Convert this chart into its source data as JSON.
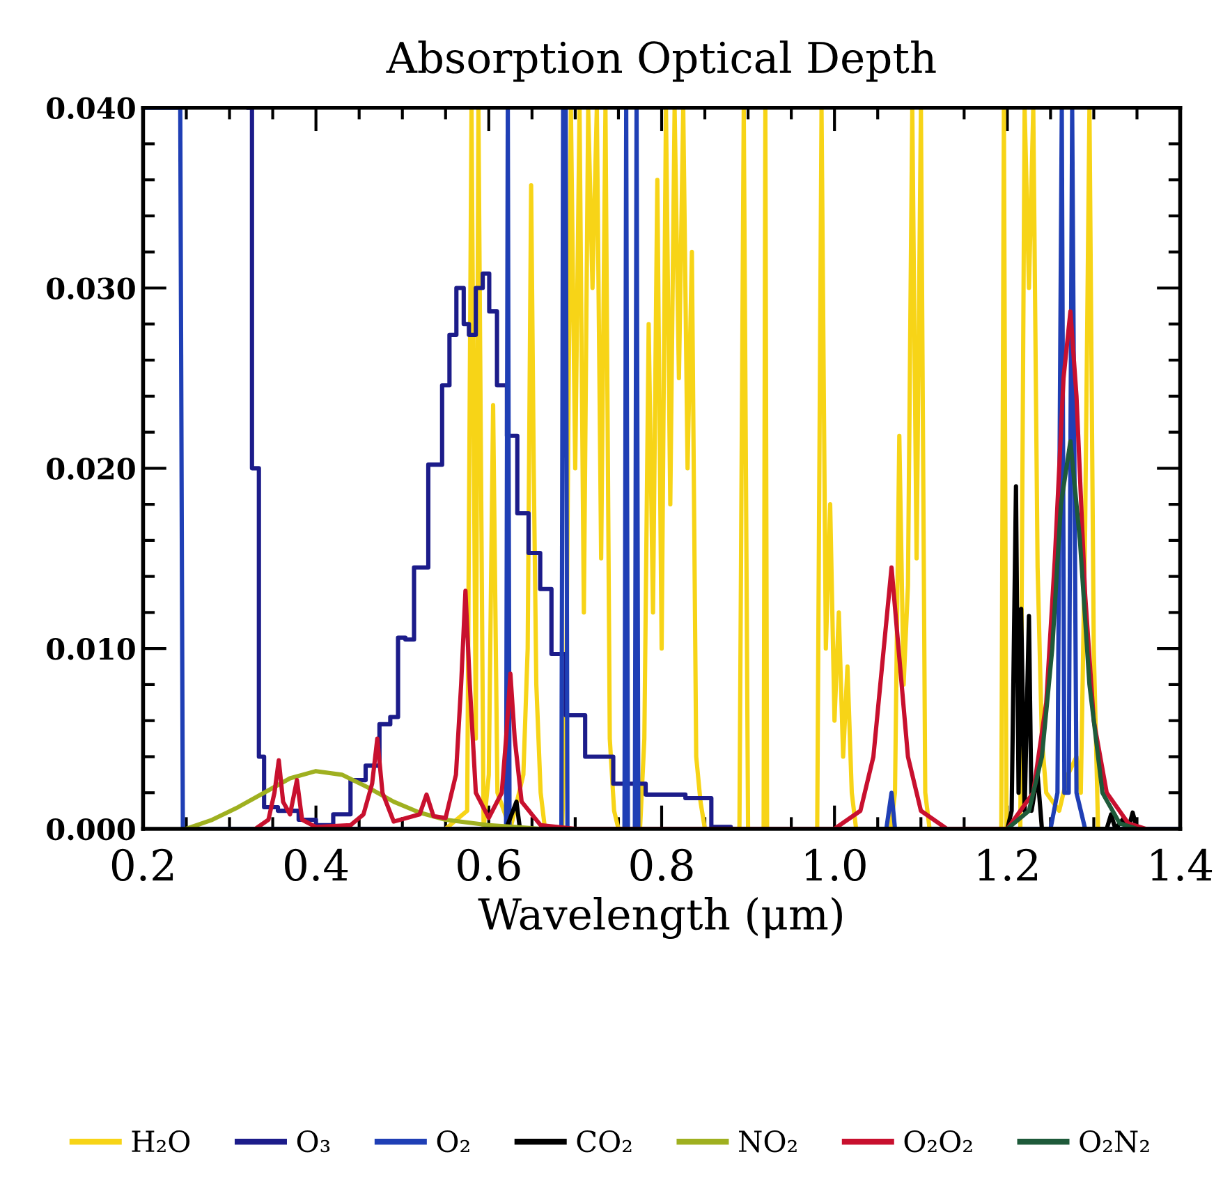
{
  "chart_data": {
    "type": "line",
    "title": "Absorption Optical Depth",
    "xlabel": "Wavelength (μm)",
    "xlim": [
      0.2,
      1.4
    ],
    "ylim": [
      0,
      0.04
    ],
    "xticks": [
      0.2,
      0.4,
      0.6,
      0.8,
      {
        "value": 1,
        "label": "1.0"
      },
      1.2,
      1.4
    ],
    "yticks": [
      {
        "value": 0,
        "label": "0.000"
      },
      {
        "value": 0.01,
        "label": "0.010"
      },
      {
        "value": 0.02,
        "label": "0.020"
      },
      {
        "value": 0.03,
        "label": "0.030"
      },
      {
        "value": 0.04,
        "label": "0.040"
      }
    ],
    "grid": false,
    "legend": "bottom",
    "series": [
      {
        "name": "H₂O",
        "color": "#f7d417",
        "x": [
          0.55,
          0.575,
          0.58,
          0.585,
          0.588,
          0.594,
          0.6,
          0.605,
          0.61,
          0.625,
          0.64,
          0.645,
          0.649,
          0.652,
          0.655,
          0.66,
          0.665,
          0.685,
          0.69,
          0.695,
          0.7,
          0.705,
          0.71,
          0.715,
          0.72,
          0.725,
          0.73,
          0.735,
          0.74,
          0.745,
          0.75,
          0.775,
          0.78,
          0.785,
          0.79,
          0.795,
          0.8,
          0.805,
          0.81,
          0.815,
          0.82,
          0.825,
          0.83,
          0.835,
          0.84,
          0.845,
          0.85,
          0.89,
          0.895,
          0.9,
          0.918,
          0.92,
          0.922,
          0.98,
          0.985,
          0.99,
          0.995,
          1.0,
          1.005,
          1.01,
          1.015,
          1.02,
          1.025,
          1.065,
          1.07,
          1.075,
          1.08,
          1.085,
          1.09,
          1.095,
          1.1,
          1.105,
          1.11,
          1.193,
          1.196,
          1.199,
          1.215,
          1.22,
          1.225,
          1.23,
          1.235,
          1.24,
          1.245,
          1.26,
          1.27,
          1.28,
          1.285,
          1.29,
          1.295,
          1.3,
          1.305,
          1.4
        ],
        "values": [
          0,
          0.001,
          0.04,
          0.005,
          0.04,
          0,
          0.003,
          0.0235,
          0.002,
          0,
          0.003,
          0.01,
          0.0357,
          0.02,
          0.008,
          0.002,
          0,
          0,
          0.01,
          0.04,
          0.02,
          0.04,
          0.012,
          0.04,
          0.03,
          0.04,
          0.015,
          0.04,
          0.005,
          0.001,
          0,
          0,
          0.005,
          0.028,
          0.012,
          0.036,
          0.01,
          0.04,
          0.018,
          0.04,
          0.025,
          0.04,
          0.02,
          0.032,
          0.004,
          0.0015,
          0,
          0,
          0.04,
          0,
          0,
          0.04,
          0,
          0,
          0.04,
          0.01,
          0.018,
          0.006,
          0.012,
          0.004,
          0.009,
          0.002,
          0,
          0,
          0.002,
          0.0218,
          0.008,
          0.0135,
          0.04,
          0.015,
          0.04,
          0.002,
          0,
          0,
          0.04,
          0,
          0,
          0.04,
          0.03,
          0.04,
          0.0145,
          0.005,
          0.002,
          0.001,
          0.003,
          0.004,
          0.002,
          0.0166,
          0.04,
          0.01,
          0,
          0
        ]
      },
      {
        "name": "O₃",
        "color": "#1c1c8a",
        "type": "step",
        "x": [
          0.322,
          0.33,
          0.338,
          0.342,
          0.37,
          0.39,
          0.41,
          0.43,
          0.45,
          0.465,
          0.482,
          0.49,
          0.5,
          0.507,
          0.52,
          0.54,
          0.552,
          0.557,
          0.568,
          0.574,
          0.58,
          0.59,
          0.596,
          0.605,
          0.614,
          0.628,
          0.638,
          0.654,
          0.665,
          0.68,
          0.698,
          0.725,
          0.763,
          0.8,
          0.855,
          0.86,
          0.9
        ],
        "values": [
          0.04,
          0.02,
          0.004,
          0.0012,
          0.001,
          0.0005,
          0.0002,
          0.0008,
          0.0027,
          0.0035,
          0.0058,
          0.0062,
          0.0106,
          0.0105,
          0.0145,
          0.0202,
          0.0246,
          0.0274,
          0.03,
          0.028,
          0.0274,
          0.03,
          0.0308,
          0.0287,
          0.0246,
          0.0218,
          0.0175,
          0.0153,
          0.0133,
          0.0097,
          0.0063,
          0.004,
          0.0025,
          0.0019,
          0.0017,
          0.0001,
          0
        ]
      },
      {
        "name": "O₂",
        "color": "#1f3fb5",
        "x": [
          0.2,
          0.243,
          0.246,
          0.62,
          0.622,
          0.624,
          0.684,
          0.686,
          0.689,
          0.691,
          0.757,
          0.759,
          0.761,
          0.769,
          0.771,
          0.773,
          1.06,
          1.066,
          1.07,
          1.25,
          1.258,
          1.263,
          1.266,
          1.271,
          1.275,
          1.28,
          1.29,
          1.4
        ],
        "values": [
          0.04,
          0.04,
          0,
          0,
          0.04,
          0,
          0,
          0.04,
          0.04,
          0,
          0,
          0.04,
          0,
          0,
          0.04,
          0,
          0,
          0.002,
          0,
          0,
          0.002,
          0.04,
          0.002,
          0.002,
          0.04,
          0.002,
          0,
          0
        ]
      },
      {
        "name": "CO₂",
        "color": "#000000",
        "x": [
          0.62,
          0.632,
          0.636,
          1.2,
          1.205,
          1.21,
          1.213,
          1.216,
          1.22,
          1.225,
          1.228,
          1.235,
          1.24,
          1.315,
          1.32,
          1.325,
          1.335,
          1.34,
          1.345,
          1.35
        ],
        "values": [
          0,
          0.0015,
          0,
          0,
          0.001,
          0.019,
          0.002,
          0.0122,
          0.001,
          0.0118,
          0.001,
          0.003,
          0,
          0,
          0.0008,
          0,
          0.0006,
          0,
          0.0009,
          0
        ]
      },
      {
        "name": "NO₂",
        "color": "#9fb020",
        "x": [
          0.25,
          0.28,
          0.31,
          0.34,
          0.37,
          0.4,
          0.43,
          0.46,
          0.49,
          0.52,
          0.55,
          0.6,
          0.66
        ],
        "values": [
          0,
          0.0005,
          0.0012,
          0.002,
          0.0028,
          0.0032,
          0.003,
          0.0023,
          0.0015,
          0.0009,
          0.0005,
          0.0002,
          0
        ]
      },
      {
        "name": "O₂O₂",
        "color": "#c8102e",
        "x": [
          0.33,
          0.345,
          0.352,
          0.357,
          0.362,
          0.37,
          0.378,
          0.384,
          0.4,
          0.44,
          0.455,
          0.465,
          0.471,
          0.477,
          0.49,
          0.52,
          0.528,
          0.536,
          0.55,
          0.562,
          0.568,
          0.573,
          0.578,
          0.585,
          0.6,
          0.615,
          0.62,
          0.625,
          0.63,
          0.638,
          0.66,
          0.7,
          1.0,
          1.03,
          1.045,
          1.055,
          1.066,
          1.075,
          1.085,
          1.1,
          1.13,
          1.2,
          1.23,
          1.245,
          1.255,
          1.265,
          1.273,
          1.28,
          1.29,
          1.3,
          1.315,
          1.34,
          1.36
        ],
        "values": [
          0,
          0.0005,
          0.002,
          0.0038,
          0.0015,
          0.0008,
          0.0027,
          0.0005,
          0.0001,
          0.0002,
          0.0008,
          0.0025,
          0.005,
          0.002,
          0.0004,
          0.0008,
          0.0019,
          0.0007,
          0.0006,
          0.003,
          0.008,
          0.0132,
          0.008,
          0.002,
          0.0006,
          0.002,
          0.005,
          0.0086,
          0.005,
          0.0015,
          0.0002,
          0,
          0,
          0.001,
          0.004,
          0.009,
          0.0145,
          0.0095,
          0.004,
          0.001,
          0,
          0,
          0.002,
          0.007,
          0.015,
          0.025,
          0.0287,
          0.024,
          0.013,
          0.006,
          0.002,
          0.0003,
          0
        ]
      },
      {
        "name": "O₂N₂",
        "color": "#1e5a3a",
        "x": [
          1.2,
          1.225,
          1.24,
          1.252,
          1.262,
          1.273,
          1.284,
          1.295,
          1.31,
          1.33,
          1.35
        ],
        "values": [
          0,
          0.001,
          0.004,
          0.01,
          0.018,
          0.0215,
          0.016,
          0.008,
          0.002,
          0.0003,
          0
        ]
      }
    ]
  }
}
